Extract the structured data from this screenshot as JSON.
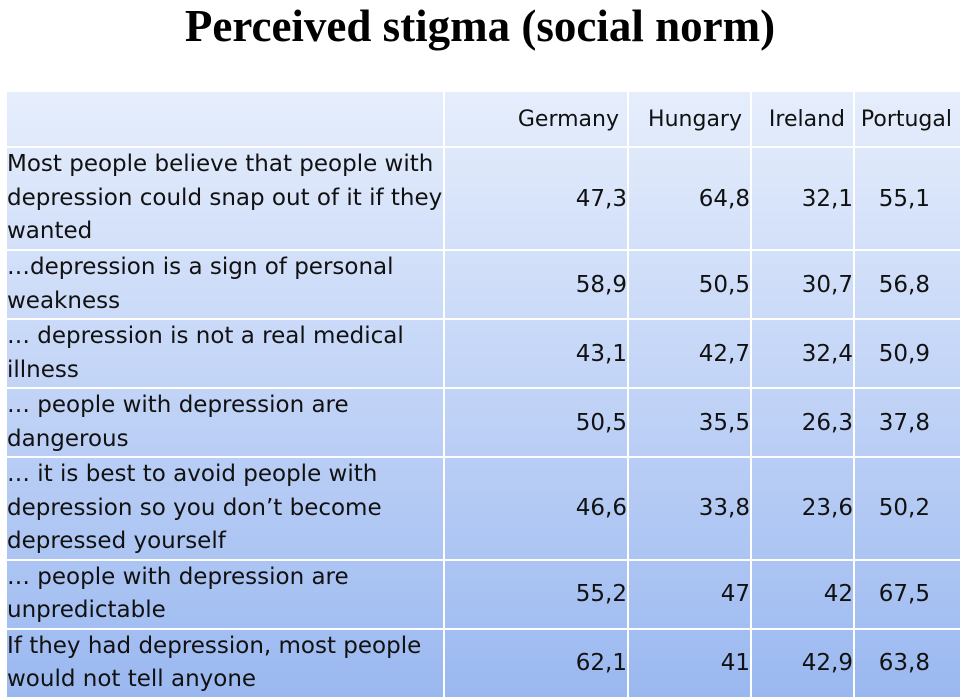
{
  "title": "Perceived stigma (social norm)",
  "table": {
    "columns": [
      "Germany",
      "Hungary",
      "Ireland",
      "Portugal"
    ],
    "rows": [
      {
        "label": "Most people believe that people with depression could snap out of it if they wanted",
        "values": [
          "47,3",
          "64,8",
          "32,1",
          "55,1"
        ]
      },
      {
        "label": "…depression is a sign of personal weakness",
        "values": [
          "58,9",
          "50,5",
          "30,7",
          "56,8"
        ]
      },
      {
        "label": "… depression is not a real medical illness",
        "values": [
          "43,1",
          "42,7",
          "32,4",
          "50,9"
        ]
      },
      {
        "label": "… people with depression are dangerous",
        "values": [
          "50,5",
          "35,5",
          "26,3",
          "37,8"
        ]
      },
      {
        "label": "… it is best to avoid people with depression so you don’t become depressed yourself",
        "values": [
          "46,6",
          "33,8",
          "23,6",
          "50,2"
        ]
      },
      {
        "label": "… people with depression are unpredictable",
        "values": [
          "55,2",
          "47",
          "42",
          "67,5"
        ]
      },
      {
        "label": "If they had depression, most people would not tell anyone",
        "values": [
          "62,1",
          "41",
          "42,9",
          "63,8"
        ]
      }
    ]
  }
}
